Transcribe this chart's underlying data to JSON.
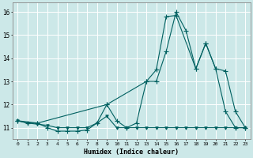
{
  "xlabel": "Humidex (Indice chaleur)",
  "xlim": [
    -0.5,
    23.5
  ],
  "ylim": [
    10.5,
    16.4
  ],
  "background_color": "#cce8e8",
  "grid_color": "#ffffff",
  "line_color": "#006060",
  "line1_x": [
    0,
    1,
    2,
    3,
    4,
    5,
    6,
    7,
    8,
    9,
    10,
    11,
    12,
    13,
    14,
    15,
    16,
    17,
    18,
    19,
    20,
    21,
    22,
    23
  ],
  "line1_y": [
    11.3,
    11.2,
    11.15,
    11.1,
    11.0,
    11.0,
    11.0,
    11.0,
    11.2,
    11.5,
    11.0,
    11.0,
    11.0,
    11.0,
    11.0,
    11.0,
    11.0,
    11.0,
    11.0,
    11.0,
    11.0,
    11.0,
    11.0,
    11.0
  ],
  "line2_x": [
    0,
    1,
    2,
    3,
    4,
    5,
    6,
    7,
    8,
    9,
    10,
    11,
    12,
    13,
    14,
    15,
    16,
    17,
    18,
    19,
    20,
    21,
    22,
    23
  ],
  "line2_y": [
    11.3,
    11.2,
    11.2,
    11.0,
    10.85,
    10.85,
    10.85,
    10.9,
    11.2,
    12.0,
    11.3,
    11.0,
    11.2,
    13.0,
    13.0,
    14.3,
    16.0,
    15.2,
    13.55,
    14.65,
    13.55,
    11.7,
    11.0,
    11.0
  ],
  "line3_x": [
    0,
    2,
    9,
    13,
    14,
    15,
    16,
    18,
    19,
    20,
    21,
    22,
    23
  ],
  "line3_y": [
    11.3,
    11.2,
    12.0,
    13.0,
    13.5,
    15.8,
    15.85,
    13.55,
    14.65,
    13.55,
    13.45,
    11.7,
    11.0
  ],
  "ytick_values": [
    11,
    12,
    13,
    14,
    15,
    16
  ],
  "xtick_labels": [
    "0",
    "1",
    "2",
    "3",
    "4",
    "5",
    "6",
    "7",
    "8",
    "9",
    "10",
    "11",
    "12",
    "13",
    "14",
    "15",
    "16",
    "17",
    "18",
    "19",
    "20",
    "21",
    "22",
    "23"
  ]
}
